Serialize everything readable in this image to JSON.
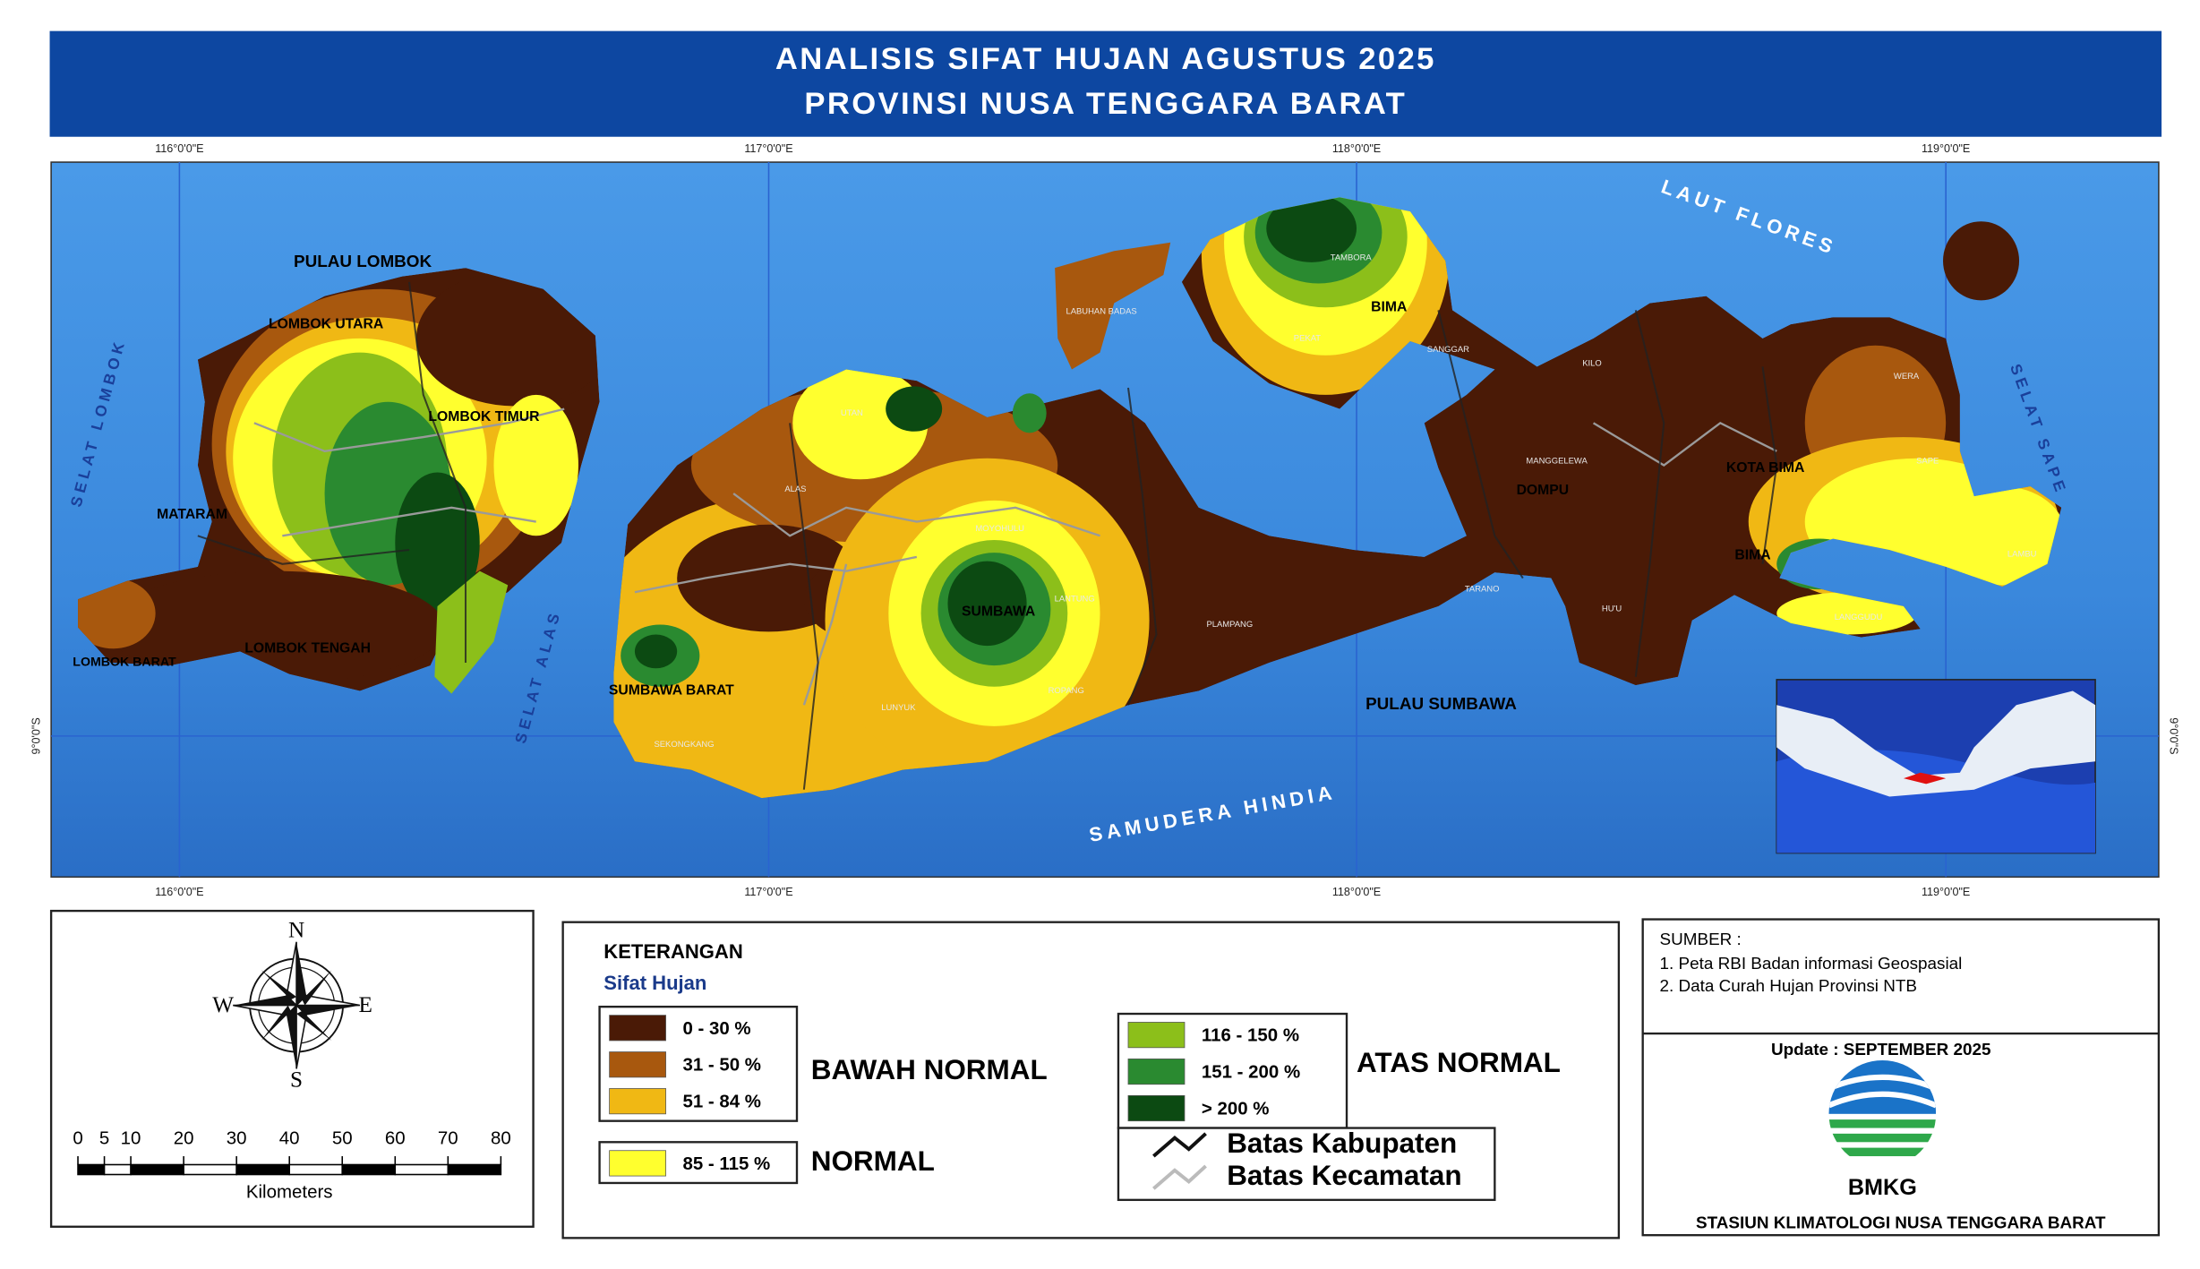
{
  "header": {
    "title_lines": [
      "ANALISIS SIFAT HUJAN AGUSTUS 2025",
      "PROVINSI NUSA TENGGARA BARAT"
    ]
  },
  "map": {
    "longitude_labels": [
      "116°0'0\"E",
      "117°0'0\"E",
      "118°0'0\"E",
      "119°0'0\"E"
    ],
    "latitude_label": "9°0'0\"S",
    "sea_labels": [
      "SELAT LOMBOK",
      "SELAT ALAS",
      "SELAT SAPE",
      "LAUT FLORES",
      "SAMUDERA HINDIA"
    ],
    "region_labels": [
      "PULAU LOMBOK",
      "LOMBOK UTARA",
      "LOMBOK TIMUR",
      "MATARAM",
      "LOMBOK BARAT",
      "LOMBOK TENGAH",
      "SUMBAWA BARAT",
      "SUMBAWA",
      "PULAU SUMBAWA",
      "DOMPU",
      "BIMA",
      "KOTA BIMA",
      "BIMA"
    ],
    "district_labels": [
      "TAMBORA",
      "PEKAT",
      "WERA",
      "LAMBU",
      "LUNYUK",
      "SEKONGKANG",
      "MOYOHULU",
      "LANTUNG",
      "ROPANG",
      "PLAMPANG",
      "TARANO",
      "SANGGAR",
      "KILO",
      "SAPE",
      "LANGGUDU",
      "UTAN",
      "ALAS",
      "LABUHAN BADAS",
      "HU'U",
      "MANGGELEWA"
    ]
  },
  "compass": {
    "north": "N",
    "east": "E",
    "south": "S",
    "west": "W"
  },
  "scale_bar": {
    "ticks": [
      0,
      5,
      10,
      20,
      30,
      40,
      50,
      60,
      70,
      80
    ],
    "unit": "Kilometers"
  },
  "legend": {
    "title": "KETERANGAN",
    "subtitle": "Sifat Hujan",
    "groups": [
      {
        "name": "BAWAH NORMAL",
        "classes": [
          {
            "range": "0 - 30 %",
            "color": "#4a1a06"
          },
          {
            "range": "31 - 50 %",
            "color": "#a8580e"
          },
          {
            "range": "51 - 84 %",
            "color": "#f0b814"
          }
        ]
      },
      {
        "name": "NORMAL",
        "classes": [
          {
            "range": "85 - 115 %",
            "color": "#ffff2e"
          }
        ]
      },
      {
        "name": "ATAS NORMAL",
        "classes": [
          {
            "range": "116 - 150 %",
            "color": "#8cbf1a"
          },
          {
            "range": "151 - 200 %",
            "color": "#2a8a30"
          },
          {
            "range": "> 200 %",
            "color": "#0c4a12"
          }
        ]
      }
    ],
    "boundaries": [
      {
        "name": "Batas Kabupaten",
        "color": "#111111"
      },
      {
        "name": "Batas Kecamatan",
        "color": "#bbbbbb"
      }
    ]
  },
  "source": {
    "heading": "SUMBER :",
    "items": [
      "1. Peta RBI Badan informasi Geospasial",
      "2. Data Curah Hujan Provinsi NTB"
    ],
    "update": "Update : SEPTEMBER 2025",
    "logo_text": "BMKG",
    "station": "STASIUN KLIMATOLOGI NUSA TENGGARA BARAT"
  }
}
